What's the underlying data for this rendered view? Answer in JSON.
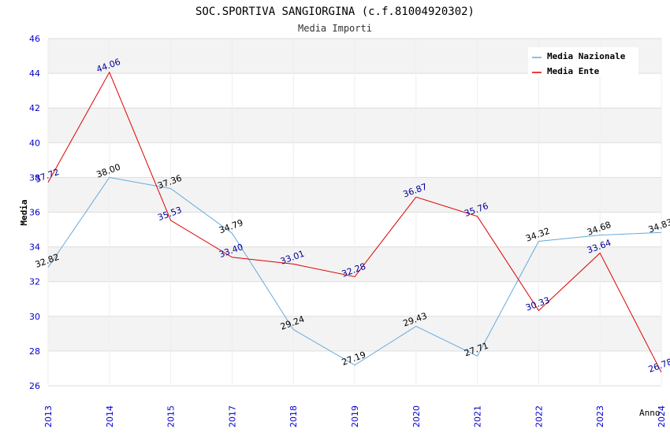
{
  "chart_data": {
    "type": "line",
    "title": "SOC.SPORTIVA SANGIORGINA (c.f.81004920302)",
    "subtitle": "Media Importi",
    "xlabel": "Anno",
    "ylabel": "Media",
    "ylim": [
      26,
      46
    ],
    "ytick_step": 2,
    "grid": true,
    "legend_position": "top-right",
    "categories": [
      "2013",
      "2014",
      "2015",
      "2017",
      "2018",
      "2019",
      "2020",
      "2021",
      "2022",
      "2023",
      "2024"
    ],
    "series": [
      {
        "name": "Media Nazionale",
        "color": "#66aadd",
        "label_color": "#000000",
        "values": [
          32.82,
          38.0,
          37.36,
          34.79,
          29.24,
          27.19,
          29.43,
          27.71,
          34.32,
          34.68,
          34.83
        ],
        "labels": [
          "32.82",
          "38.00",
          "37.36",
          "34.79",
          "29.24",
          "27.19",
          "29.43",
          "27.71",
          "34.32",
          "34.68",
          "34.83"
        ]
      },
      {
        "name": "Media Ente",
        "color": "#dd0000",
        "label_color": "#000099",
        "values": [
          37.72,
          44.06,
          35.53,
          33.4,
          33.01,
          32.28,
          36.87,
          35.76,
          30.33,
          33.64,
          26.78
        ],
        "labels": [
          "37.72",
          "44.06",
          "35.53",
          "33.40",
          "33.01",
          "32.28",
          "36.87",
          "35.76",
          "30.33",
          "33.64",
          "26.78"
        ]
      }
    ]
  }
}
